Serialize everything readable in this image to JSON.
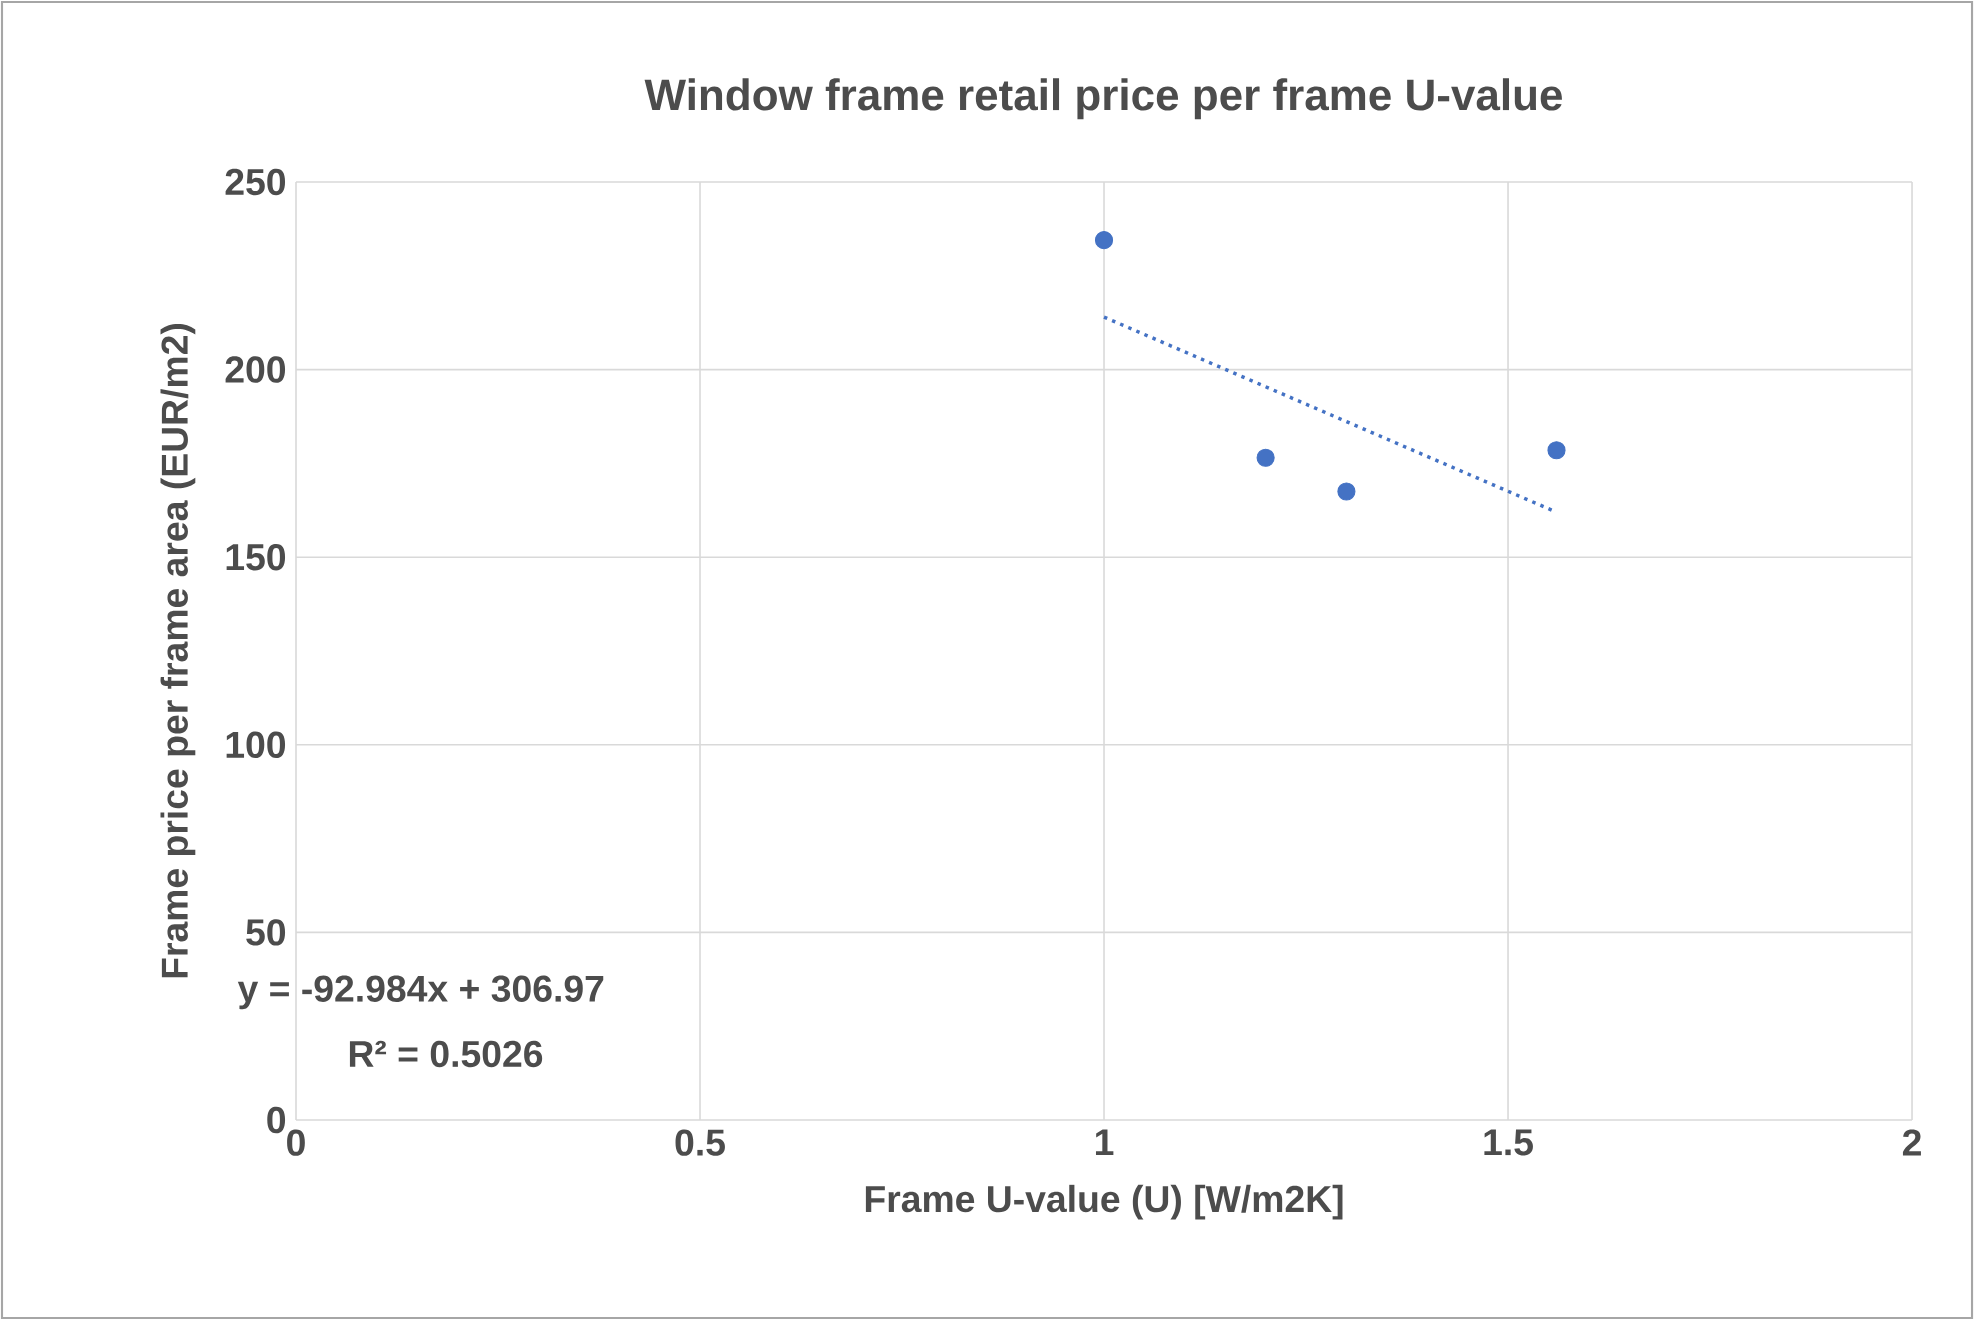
{
  "chart_data": {
    "type": "scatter",
    "title": "Window frame retail price per frame U-value",
    "xlabel": "Frame U-value (U) [W/m2K]",
    "ylabel": "Frame price per frame area (EUR/m2)",
    "series": [
      {
        "color": "#4472c4",
        "x": [
          1,
          1.2,
          1.3,
          1.56
        ],
        "values": [
          234.5,
          176.5,
          167.5,
          178.5
        ],
        "marker": "circle"
      },
      {
        "type": "line",
        "color": "#4472c4",
        "x": [
          1,
          1.56
        ],
        "values": [
          214,
          162
        ],
        "line_style": "dotted"
      }
    ],
    "xlim": [
      0,
      2
    ],
    "ylim": [
      0,
      250
    ],
    "xticks": [
      0,
      0.5,
      1,
      1.5,
      2
    ],
    "yticks": [
      0,
      50,
      100,
      150,
      200,
      250
    ],
    "grid": true,
    "annotations": [
      "y = -92.984x + 306.97",
      "R² = 0.5026"
    ]
  }
}
